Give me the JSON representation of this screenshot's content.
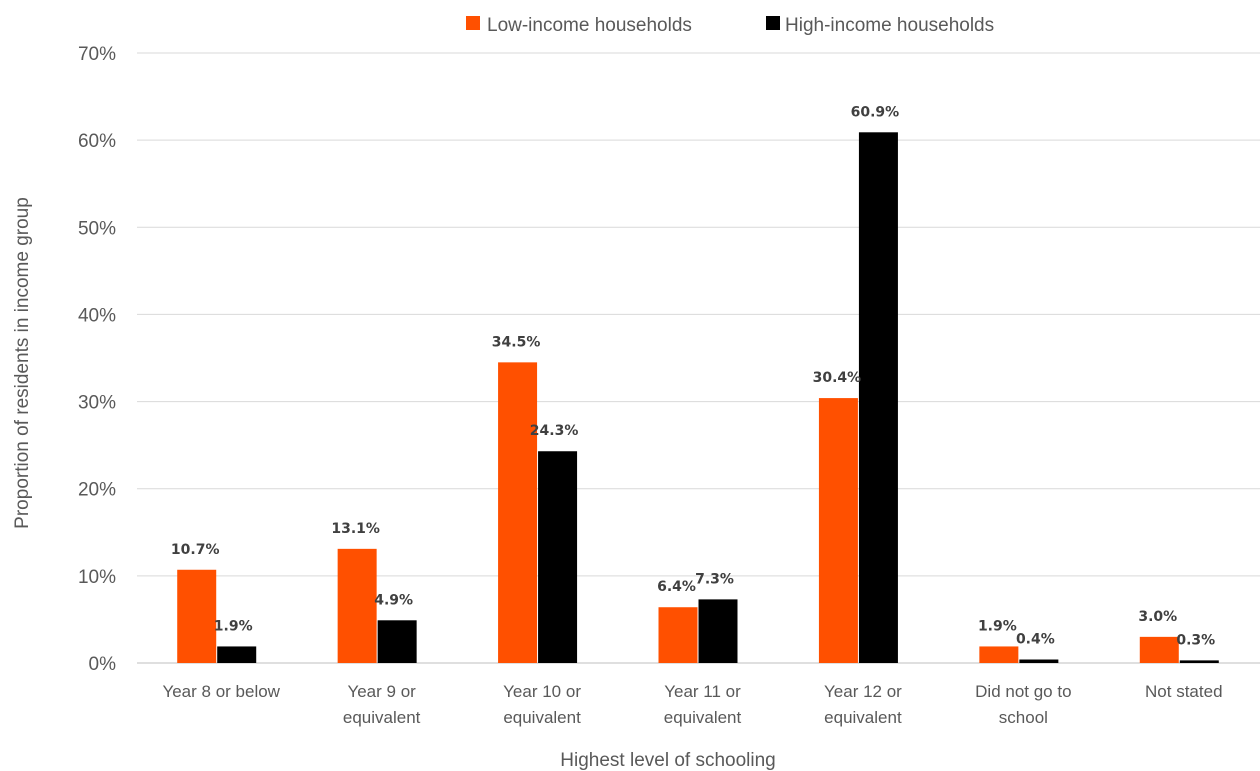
{
  "chart_data": {
    "type": "bar",
    "title": "",
    "xlabel": "Highest level of schooling",
    "ylabel": "Proportion of residents in income group",
    "ylim": [
      0,
      70
    ],
    "yticks": [
      "0%",
      "10%",
      "20%",
      "30%",
      "40%",
      "50%",
      "60%",
      "70%"
    ],
    "categories": [
      [
        "Year 8 or below"
      ],
      [
        "Year 9 or",
        "equivalent"
      ],
      [
        "Year 10 or",
        "equivalent"
      ],
      [
        "Year 11 or",
        "equivalent"
      ],
      [
        "Year 12 or",
        "equivalent"
      ],
      [
        "Did not go to",
        "school"
      ],
      [
        "Not stated"
      ]
    ],
    "series": [
      {
        "name": "Low-income households",
        "color": "#ff5000",
        "values": [
          10.7,
          13.1,
          34.5,
          6.4,
          30.4,
          1.9,
          3.0
        ],
        "labels": [
          "10.7%",
          "13.1%",
          "34.5%",
          "6.4%",
          "30.4%",
          "1.9%",
          "3.0%"
        ]
      },
      {
        "name": "High-income households",
        "color": "#000000",
        "values": [
          1.9,
          4.9,
          24.3,
          7.3,
          60.9,
          0.4,
          0.3
        ],
        "labels": [
          "1.9%",
          "4.9%",
          "24.3%",
          "7.3%",
          "60.9%",
          "0.4%",
          "0.3%"
        ]
      }
    ],
    "grid": true,
    "legend_position": "top-center"
  }
}
